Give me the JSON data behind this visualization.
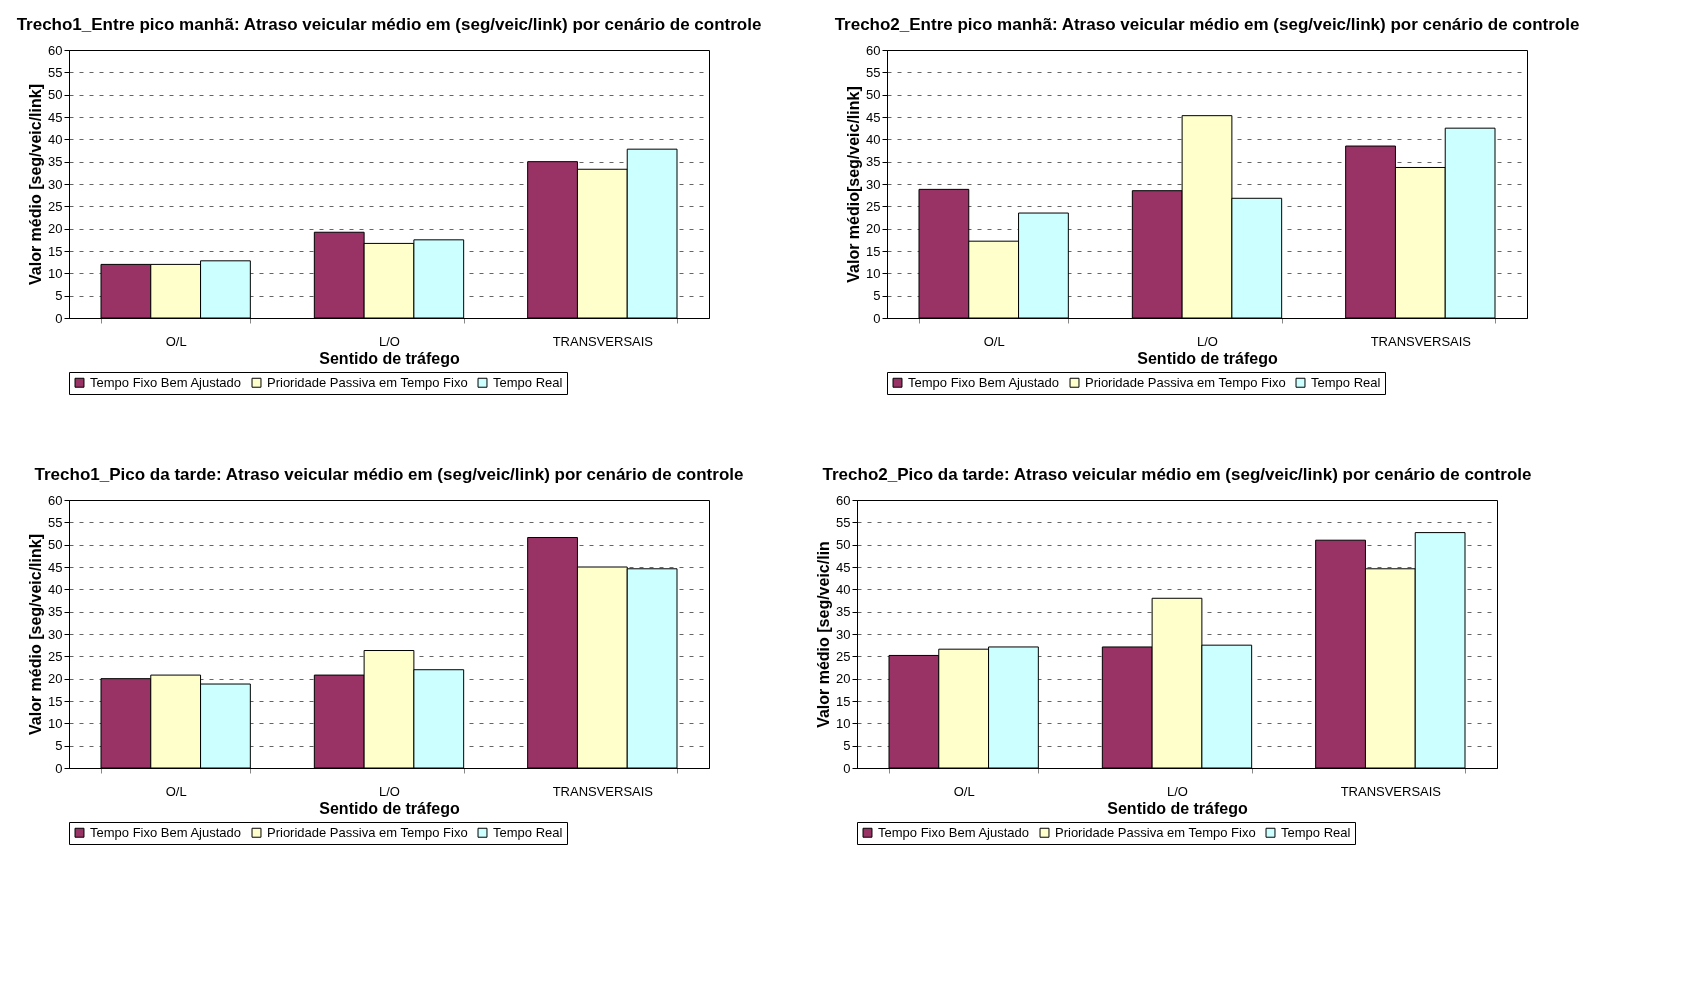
{
  "chart_data": [
    {
      "type": "bar",
      "title": "Trecho1_Entre pico manhã: Atraso veicular médio em\n(seg/veic/link) por cenário de controle",
      "xlabel": "Sentido de tráfego",
      "ylabel": "Valor médio [seg/veic/link]",
      "categories": [
        "O/L",
        "L/O",
        "TRANSVERSAIS"
      ],
      "ylim": [
        0,
        60
      ],
      "yticks": [
        0,
        5,
        10,
        15,
        20,
        25,
        30,
        35,
        40,
        45,
        50,
        55,
        60
      ],
      "grid": "y",
      "legend": "bottom",
      "series": [
        {
          "name": "Tempo Fixo Bem Ajustado",
          "color": "#993366",
          "values": [
            12,
            19.2,
            35
          ]
        },
        {
          "name": "Prioridade Passiva em Tempo Fixo",
          "color": "#ffffcc",
          "values": [
            12,
            16.7,
            33.3
          ]
        },
        {
          "name": "Tempo Real",
          "color": "#ccffff",
          "values": [
            12.8,
            17.5,
            37.8
          ]
        }
      ]
    },
    {
      "type": "bar",
      "title": "Trecho2_Entre pico manhã: Atraso veicular médio em\n(seg/veic/link) por cenário de controle",
      "xlabel": "Sentido de tráfego",
      "ylabel": "Valor médio[seg/veic/link]",
      "categories": [
        "O/L",
        "L/O",
        "TRANSVERSAIS"
      ],
      "ylim": [
        0,
        60
      ],
      "yticks": [
        0,
        5,
        10,
        15,
        20,
        25,
        30,
        35,
        40,
        45,
        50,
        55,
        60
      ],
      "grid": "y",
      "legend": "bottom",
      "series": [
        {
          "name": "Tempo Fixo Bem Ajustado",
          "color": "#993366",
          "values": [
            28.8,
            28.5,
            38.5
          ]
        },
        {
          "name": "Prioridade Passiva em Tempo Fixo",
          "color": "#ffffcc",
          "values": [
            17.2,
            45.3,
            33.7
          ]
        },
        {
          "name": "Tempo Real",
          "color": "#ccffff",
          "values": [
            23.5,
            26.8,
            42.5
          ]
        }
      ]
    },
    {
      "type": "bar",
      "title": "Trecho1_Pico da tarde: Atraso veicular médio em\n(seg/veic/link) por cenário de controle",
      "xlabel": "Sentido de tráfego",
      "ylabel": "Valor médio [seg/veic/link]",
      "categories": [
        "O/L",
        "L/O",
        "TRANSVERSAIS"
      ],
      "ylim": [
        0,
        60
      ],
      "yticks": [
        0,
        5,
        10,
        15,
        20,
        25,
        30,
        35,
        40,
        45,
        50,
        55,
        60
      ],
      "grid": "y",
      "legend": "bottom",
      "series": [
        {
          "name": "Tempo Fixo Bem Ajustado",
          "color": "#993366",
          "values": [
            20,
            20.8,
            51.6
          ]
        },
        {
          "name": "Prioridade Passiva em Tempo Fixo",
          "color": "#ffffcc",
          "values": [
            20.8,
            26.3,
            45
          ]
        },
        {
          "name": "Tempo Real",
          "color": "#ccffff",
          "values": [
            18.8,
            22,
            44.6
          ]
        }
      ]
    },
    {
      "type": "bar",
      "title": "Trecho2_Pico da tarde: Atraso veicular médio em\n(seg/veic/link) por cenário de controle",
      "xlabel": "Sentido de tráfego",
      "ylabel": "Valor médio [seg/veic/lin",
      "categories": [
        "O/L",
        "L/O",
        "TRANSVERSAIS"
      ],
      "ylim": [
        0,
        60
      ],
      "yticks": [
        0,
        5,
        10,
        15,
        20,
        25,
        30,
        35,
        40,
        45,
        50,
        55,
        60
      ],
      "grid": "y",
      "legend": "bottom",
      "series": [
        {
          "name": "Tempo Fixo Bem Ajustado",
          "color": "#993366",
          "values": [
            25.2,
            27.1,
            51
          ]
        },
        {
          "name": "Prioridade Passiva em Tempo Fixo",
          "color": "#ffffcc",
          "values": [
            26.6,
            38,
            44.6
          ]
        },
        {
          "name": "Tempo Real",
          "color": "#ccffff",
          "values": [
            27.1,
            27.5,
            52.7
          ]
        }
      ]
    }
  ]
}
